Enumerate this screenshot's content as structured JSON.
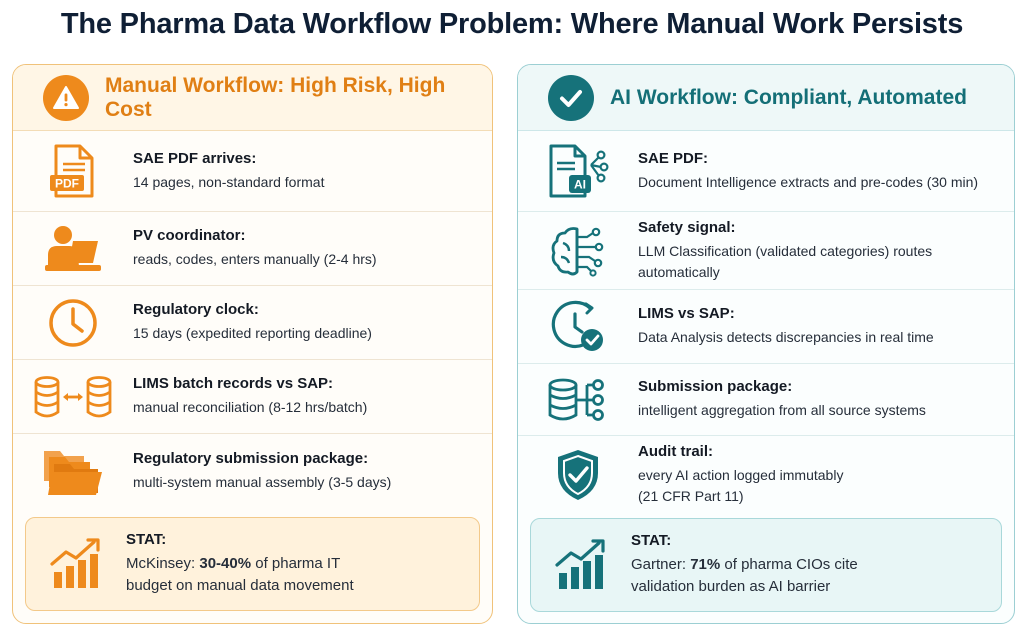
{
  "title": "The Pharma Data Workflow Problem: Where Manual Work Persists",
  "colors": {
    "manual_accent": "#ee8a1c",
    "ai_accent": "#16727a"
  },
  "manual": {
    "header": "Manual Workflow: High Risk, High Cost",
    "header_icon": "warning-icon",
    "rows": [
      {
        "icon": "pdf-document-icon",
        "heading": "SAE PDF arrives:",
        "body": "14 pages, non-standard format",
        "icon_label": "PDF"
      },
      {
        "icon": "person-laptop-icon",
        "heading": "PV coordinator:",
        "body": "reads, codes, enters manually (2-4 hrs)"
      },
      {
        "icon": "clock-icon",
        "heading": "Regulatory clock:",
        "body": "15 days (expedited reporting deadline)"
      },
      {
        "icon": "database-sync-icon",
        "heading": "LIMS batch records vs SAP:",
        "body": "manual reconciliation (8-12 hrs/batch)"
      },
      {
        "icon": "folders-icon",
        "heading": "Regulatory submission package:",
        "body": "multi-system manual assembly (3-5 days)"
      }
    ],
    "stat": {
      "icon": "bar-chart-up-icon",
      "heading": "STAT:",
      "prefix": "McKinsey: ",
      "highlight": "30-40%",
      "suffix": " of pharma IT",
      "line2": "budget on manual data movement"
    }
  },
  "ai": {
    "header": "AI Workflow: Compliant, Automated",
    "header_icon": "checkmark-icon",
    "rows": [
      {
        "icon": "ai-document-icon",
        "heading": "SAE PDF:",
        "body": "Document Intelligence extracts and pre-codes (30 min)",
        "icon_label": "AI"
      },
      {
        "icon": "brain-network-icon",
        "heading": "Safety signal:",
        "body": "LLM Classification (validated categories) routes automatically"
      },
      {
        "icon": "clock-check-icon",
        "heading": "LIMS vs SAP:",
        "body": "Data Analysis detects discrepancies in real time"
      },
      {
        "icon": "database-network-icon",
        "heading": "Submission package:",
        "body": "intelligent aggregation from all source systems"
      },
      {
        "icon": "shield-check-icon",
        "heading": "Audit trail:",
        "body": "every AI action logged immutably",
        "body2": "(21 CFR Part 11)"
      }
    ],
    "stat": {
      "icon": "bar-chart-up-icon",
      "heading": "STAT:",
      "prefix": "Gartner: ",
      "highlight": "71%",
      "suffix": " of pharma CIOs cite",
      "line2": "validation burden as AI barrier"
    }
  }
}
